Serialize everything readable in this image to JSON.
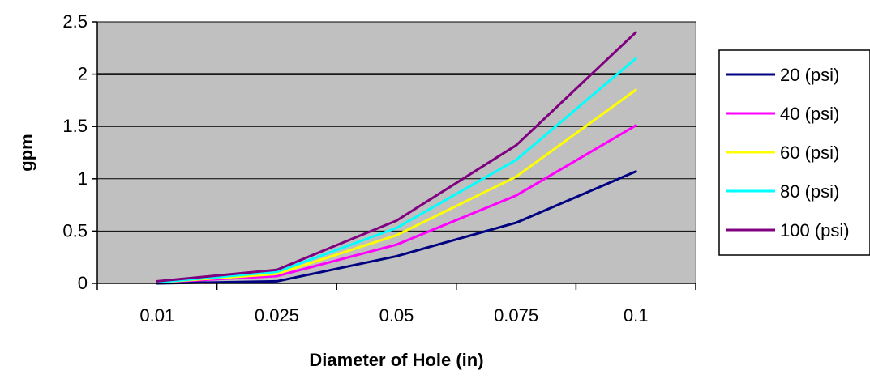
{
  "chart_data": {
    "type": "line",
    "title": "",
    "xlabel": "Diameter of Hole (in)",
    "ylabel": "gpm",
    "categories": [
      "0.01",
      "0.025",
      "0.05",
      "0.075",
      "0.1"
    ],
    "y_ticks": [
      "0",
      "0.5",
      "1",
      "1.5",
      "2",
      "2.5"
    ],
    "ylim": [
      0,
      2.5
    ],
    "grid": true,
    "legend_position": "right",
    "series": [
      {
        "name": "20 (psi)",
        "color": "#000080",
        "values": [
          0.0,
          0.02,
          0.26,
          0.58,
          1.07
        ]
      },
      {
        "name": "40 (psi)",
        "color": "#ff00ff",
        "values": [
          0.01,
          0.07,
          0.37,
          0.84,
          1.51
        ]
      },
      {
        "name": "60 (psi)",
        "color": "#ffff00",
        "values": [
          0.01,
          0.09,
          0.46,
          1.02,
          1.85
        ]
      },
      {
        "name": "80 (psi)",
        "color": "#00ffff",
        "values": [
          0.01,
          0.11,
          0.53,
          1.18,
          2.15
        ]
      },
      {
        "name": "100 (psi)",
        "color": "#800080",
        "values": [
          0.02,
          0.13,
          0.6,
          1.32,
          2.4
        ]
      }
    ],
    "colors": {
      "plot_background": "#c0c0c0",
      "gridline": "#000000",
      "axis": "#000000"
    }
  }
}
